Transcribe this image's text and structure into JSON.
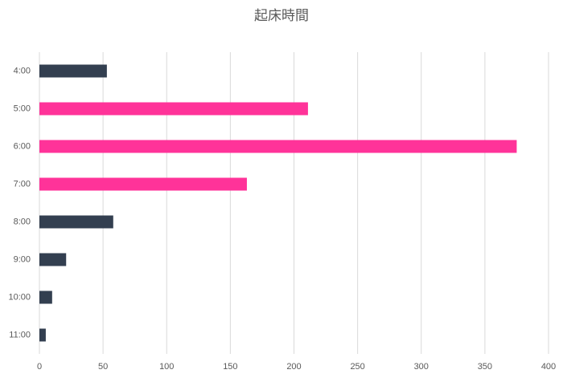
{
  "chart_data": {
    "type": "bar",
    "orientation": "horizontal",
    "title": "起床時間",
    "categories": [
      "4:00",
      "5:00",
      "6:00",
      "7:00",
      "8:00",
      "9:00",
      "10:00",
      "11:00"
    ],
    "values": [
      53,
      211,
      375,
      163,
      58,
      21,
      10,
      5
    ],
    "colors": [
      "#333f50",
      "#ff3399",
      "#ff3399",
      "#ff3399",
      "#333f50",
      "#333f50",
      "#333f50",
      "#333f50"
    ],
    "xlim": [
      0,
      400
    ],
    "xticks": [
      0,
      50,
      100,
      150,
      200,
      250,
      300,
      350,
      400
    ],
    "grid": true
  }
}
